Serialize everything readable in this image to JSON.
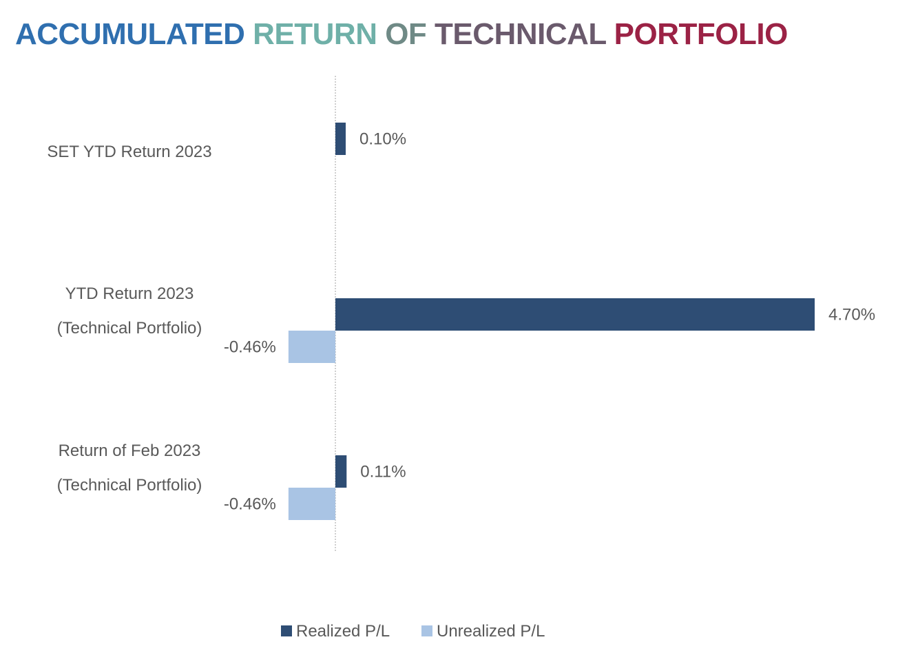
{
  "title": {
    "parts": [
      {
        "text": "ACCUMULATED",
        "color": "#2F6FAF"
      },
      {
        "text": " RETURN",
        "color": "#6FB0A8"
      },
      {
        "text": " OF",
        "color": "#6F8A86"
      },
      {
        "text": " TECHNICAL",
        "color": "#6A5A6C"
      },
      {
        "text": " PORTFOLIO",
        "color": "#9B2245"
      }
    ]
  },
  "chart_data": {
    "type": "bar",
    "orientation": "horizontal",
    "categories": [
      {
        "lines": [
          "SET YTD Return 2023"
        ]
      },
      {
        "lines": [
          "YTD Return 2023",
          "(Technical Portfolio)"
        ]
      },
      {
        "lines": [
          "Return of Feb 2023",
          "(Technical Portfolio)"
        ]
      }
    ],
    "series": [
      {
        "name": "Realized P/L",
        "color": "#2E4D74",
        "values": [
          0.1,
          4.7,
          0.11
        ],
        "labels": [
          "0.10%",
          "4.70%",
          "0.11%"
        ]
      },
      {
        "name": "Unrealized P/L",
        "color": "#A9C4E4",
        "values": [
          null,
          -0.46,
          -0.46
        ],
        "labels": [
          null,
          "-0.46%",
          "-0.46%"
        ]
      }
    ],
    "xlim": [
      -0.46,
      4.7
    ],
    "grid": false,
    "legend": "bottom-center"
  }
}
